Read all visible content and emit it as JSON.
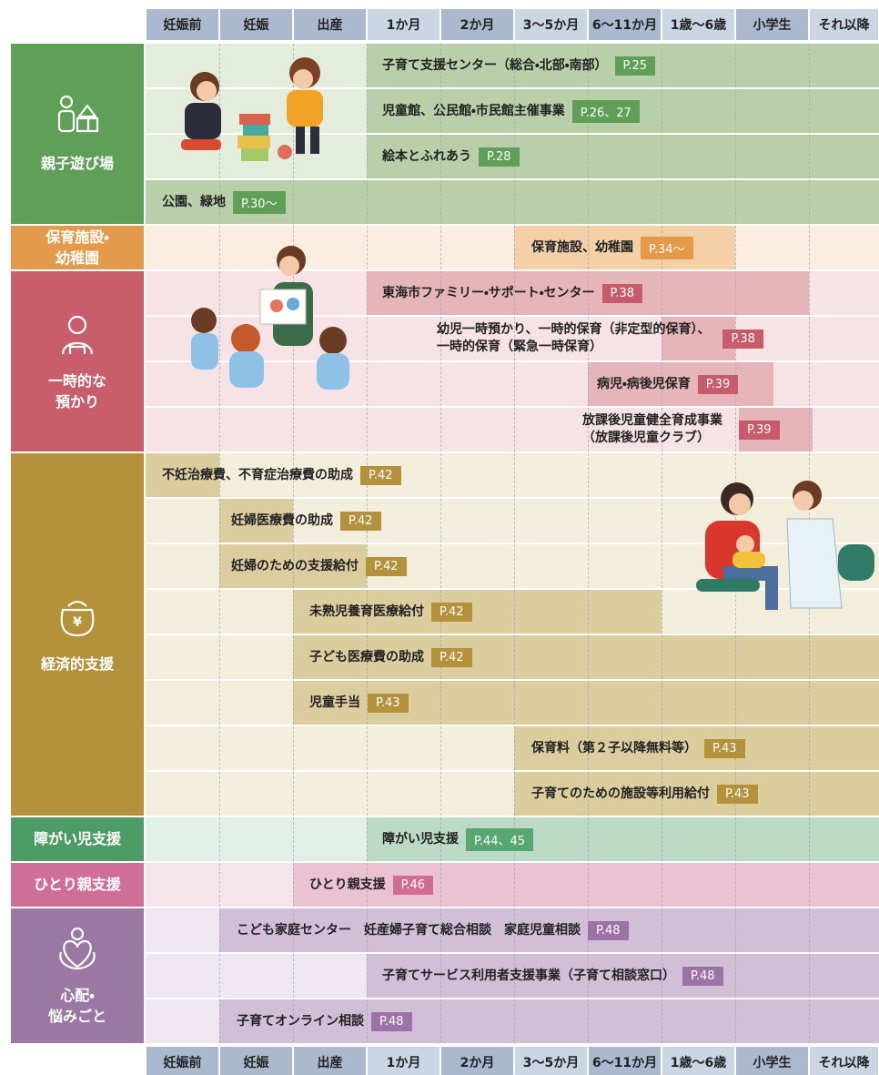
{
  "header": {
    "columns": [
      "妊娠前",
      "妊娠",
      "出産",
      "1か月",
      "2か月",
      "3～5か月",
      "6～11か月",
      "1歳～6歳",
      "小学生",
      "それ以降"
    ]
  },
  "sections": [
    {
      "label": [
        "親子遊び場"
      ],
      "rows": [
        {
          "lines": [
            "子育て支援センター（総合・北部・南部）"
          ],
          "page": "P.25"
        },
        {
          "lines": [
            "児童館、公民館・市民館主催事業"
          ],
          "page": "P.26、27"
        },
        {
          "lines": [
            "絵本とふれあう"
          ],
          "page": "P.28"
        },
        {
          "lines": [
            "公園、緑地"
          ],
          "page": "P.30～"
        }
      ]
    },
    {
      "label": [
        "保育施設・",
        "幼稚園"
      ],
      "rows": [
        {
          "lines": [
            "保育施設、幼稚園"
          ],
          "page": "P.34～"
        }
      ]
    },
    {
      "label": [
        "一時的な",
        "預かり"
      ],
      "rows": [
        {
          "lines": [
            "東海市ファミリー・サポート・センター"
          ],
          "page": "P.38"
        },
        {
          "lines": [
            "幼児一時預かり、一時的保育（非定型的保育）、",
            "一時的保育（緊急一時保育）"
          ],
          "page": "P.38"
        },
        {
          "lines": [
            "病児・病後児保育"
          ],
          "page": "P.39"
        },
        {
          "lines": [
            "放課後児童健全育成事業",
            "（放課後児童クラブ）"
          ],
          "page": "P.39"
        }
      ]
    },
    {
      "label": [
        "経済的支援"
      ],
      "rows": [
        {
          "lines": [
            "不妊治療費、不育症治療費の助成"
          ],
          "page": "P.42"
        },
        {
          "lines": [
            "妊婦医療費の助成"
          ],
          "page": "P.42"
        },
        {
          "lines": [
            "妊婦のための支援給付"
          ],
          "page": "P.42"
        },
        {
          "lines": [
            "未熟児養育医療給付"
          ],
          "page": "P.42"
        },
        {
          "lines": [
            "子ども医療費の助成"
          ],
          "page": "P.42"
        },
        {
          "lines": [
            "児童手当"
          ],
          "page": "P.43"
        },
        {
          "lines": [
            "保育料（第２子以降無料等）"
          ],
          "page": "P.43"
        },
        {
          "lines": [
            "子育てのための施設等利用給付"
          ],
          "page": "P.43"
        }
      ]
    },
    {
      "label": [
        "障がい児支援"
      ],
      "rows": [
        {
          "lines": [
            "障がい児支援"
          ],
          "page": "P.44、45"
        }
      ]
    },
    {
      "label": [
        "ひとり親支援"
      ],
      "rows": [
        {
          "lines": [
            "ひとり親支援"
          ],
          "page": "P.46"
        }
      ]
    },
    {
      "label": [
        "心配・",
        "悩みごと"
      ],
      "rows": [
        {
          "lines": [
            "こども家庭センター　妊産婦子育て総合相談　家庭児童相談"
          ],
          "page": "P.48"
        },
        {
          "lines": [
            "子育てサービス利用者支援事業（子育て相談窓口）"
          ],
          "page": "P.48"
        },
        {
          "lines": [
            "子育てオンライン相談"
          ],
          "page": "P.48"
        }
      ]
    }
  ]
}
